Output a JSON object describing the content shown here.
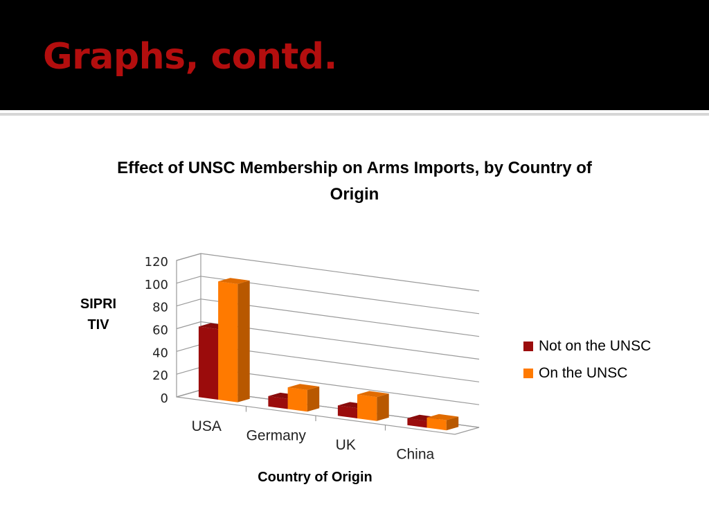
{
  "slide": {
    "title": "Graphs, contd."
  },
  "colors": {
    "header_bg": "#000000",
    "title": "#b30e0e",
    "not_on_unsc": "#9b0c0c",
    "on_unsc": "#ff7a00"
  },
  "chart_data": {
    "type": "bar",
    "title": "Effect of UNSC Membership on Arms Imports, by Country of Origin",
    "xlabel": "Country of Origin",
    "ylabel": "SIPRI TIV",
    "categories": [
      "USA",
      "Germany",
      "UK",
      "China"
    ],
    "series": [
      {
        "name": "Not on the UNSC",
        "values": [
          62,
          9,
          9,
          6
        ],
        "color": "#9b0c0c"
      },
      {
        "name": "On the UNSC",
        "values": [
          104,
          19,
          21,
          9
        ],
        "color": "#ff7a00"
      }
    ],
    "ylim": [
      0,
      120
    ],
    "yticks": [
      "0",
      "20",
      "40",
      "60",
      "80",
      "100",
      "120"
    ],
    "grid": true,
    "legend_position": "right",
    "style": "3d clustered column"
  }
}
